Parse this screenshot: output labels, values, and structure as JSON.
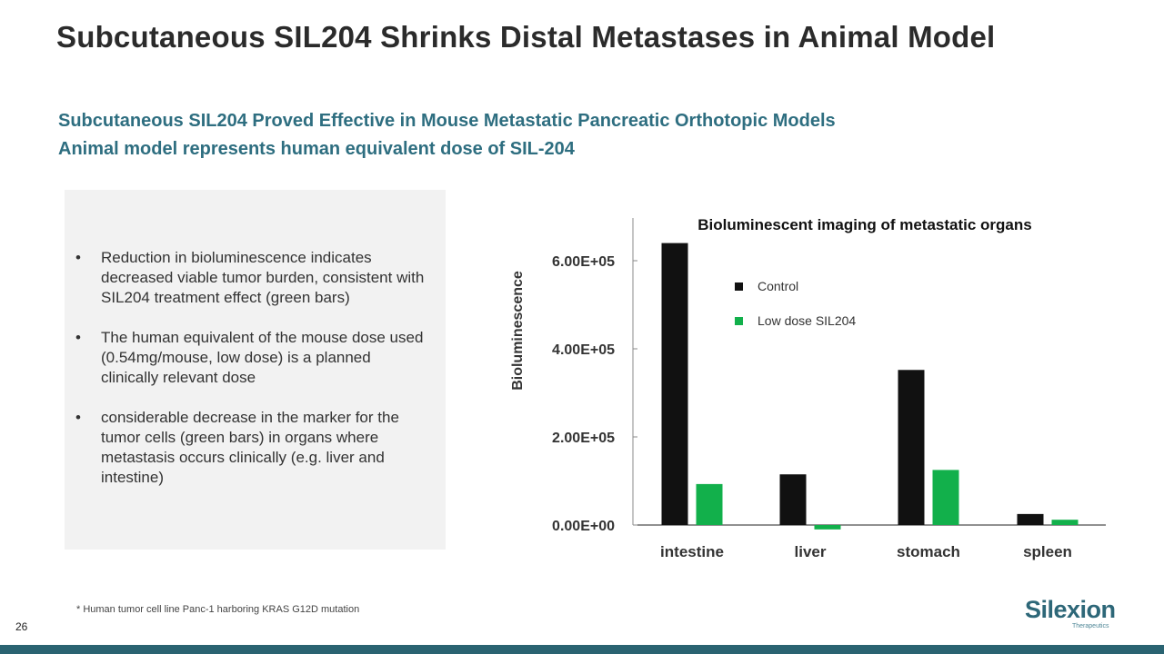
{
  "slide": {
    "title": "Subcutaneous SIL204 Shrinks Distal Metastases in Animal Model",
    "subtitle_1": "Subcutaneous SIL204 Proved Effective in Mouse Metastatic Pancreatic Orthotopic Models",
    "subtitle_2": "Animal model represents human equivalent dose of SIL-204",
    "page_number": "26",
    "footnote": "* Human tumor cell line Panc-1 harboring KRAS G12D mutation"
  },
  "bullets": [
    "Reduction in bioluminescence indicates decreased viable tumor burden, consistent with SIL204 treatment effect (green bars)",
    "The human equivalent of the mouse dose used (0.54mg/mouse, low dose) is a planned clinically relevant dose",
    "considerable decrease in the marker for the tumor cells (green bars) in organs where metastasis occurs clinically (e.g. liver and intestine)"
  ],
  "logo": {
    "name": "Silexion",
    "tagline": "Therapeutics"
  },
  "colors": {
    "accent": "#2e6e80",
    "footer": "#2a6371",
    "control": "#111111",
    "treated": "#12b04b"
  },
  "chart_data": {
    "type": "bar",
    "title": "Bioluminescent  imaging of metastatic organs",
    "xlabel": "",
    "ylabel": "Bioluminescence",
    "categories": [
      "intestine",
      "liver",
      "stomach",
      "spleen"
    ],
    "series": [
      {
        "name": "Control",
        "values": [
          640000,
          115000,
          352000,
          25000
        ]
      },
      {
        "name": "Low dose SIL204",
        "values": [
          93000,
          -10000,
          125000,
          12000
        ]
      }
    ],
    "ylim": [
      0,
      700000
    ],
    "yticks": [
      0,
      200000,
      400000,
      600000
    ],
    "ytick_labels": [
      "0.00E+00",
      "2.00E+05",
      "4.00E+05",
      "6.00E+05"
    ],
    "grid": false,
    "legend": "top-left inside"
  }
}
